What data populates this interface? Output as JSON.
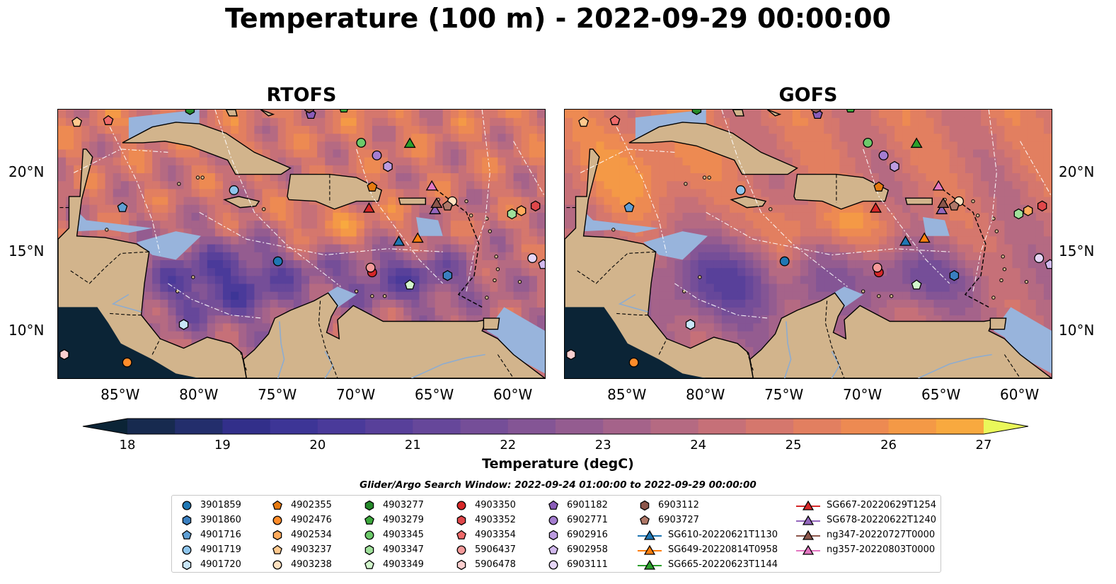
{
  "title": "Temperature (100 m) - 2022-09-29 00:00:00",
  "panels": [
    {
      "title": "RTOFS",
      "model": "rtofs"
    },
    {
      "title": "GOFS",
      "model": "gofs"
    }
  ],
  "map_extent": {
    "lon_min": -89,
    "lon_max": -58,
    "lat_min": 7,
    "lat_max": 24
  },
  "lon_ticks": [
    {
      "value": -85,
      "label": "85°W"
    },
    {
      "value": -80,
      "label": "80°W"
    },
    {
      "value": -75,
      "label": "75°W"
    },
    {
      "value": -70,
      "label": "70°W"
    },
    {
      "value": -65,
      "label": "65°W"
    },
    {
      "value": -60,
      "label": "60°W"
    }
  ],
  "lat_ticks": [
    {
      "value": 20,
      "label": "20°N"
    },
    {
      "value": 15,
      "label": "15°N"
    },
    {
      "value": 10,
      "label": "10°N"
    }
  ],
  "colorbar": {
    "label": "Temperature (degC)",
    "min": 18,
    "max": 27,
    "step": 0.5,
    "ticks": [
      "18",
      "19",
      "20",
      "21",
      "22",
      "23",
      "24",
      "25",
      "26",
      "27"
    ],
    "extend": "both",
    "colors": [
      "#0b2436",
      "#172a4f",
      "#232e6c",
      "#322f8a",
      "#3d3596",
      "#4a3a9a",
      "#58409a",
      "#66479a",
      "#754e98",
      "#845595",
      "#945c90",
      "#a5638a",
      "#b56a82",
      "#c67078",
      "#d5776d",
      "#e27f60",
      "#ed8a52",
      "#f49946",
      "#f8a93f",
      "#f9bc3e",
      "#f6d044",
      "#f2e64f",
      "#eaf85a"
    ],
    "land_color": "#d2b48c",
    "shelf_color": "#98b4dc"
  },
  "search_window": "Glider/Argo Search Window: 2022-09-24 01:00:00 to 2022-09-29 00:00:00",
  "legend": [
    {
      "label": "3901859",
      "marker": "circle",
      "color": "#1f77b4"
    },
    {
      "label": "3901860",
      "marker": "hexagon",
      "color": "#3a7fc0"
    },
    {
      "label": "4901716",
      "marker": "pentagon",
      "color": "#5f9fd4"
    },
    {
      "label": "4901719",
      "marker": "circle",
      "color": "#8ec5ec"
    },
    {
      "label": "4901720",
      "marker": "hexagon",
      "color": "#c9e6f8"
    },
    {
      "label": "4902355",
      "marker": "pentagon",
      "color": "#e67a10"
    },
    {
      "label": "4902476",
      "marker": "circle",
      "color": "#ff8c2a"
    },
    {
      "label": "4902534",
      "marker": "hexagon",
      "color": "#ffab5c"
    },
    {
      "label": "4903237",
      "marker": "pentagon",
      "color": "#ffc98e"
    },
    {
      "label": "4903238",
      "marker": "circle",
      "color": "#ffe1c0"
    },
    {
      "label": "4903277",
      "marker": "hexagon",
      "color": "#258a2a"
    },
    {
      "label": "4903279",
      "marker": "pentagon",
      "color": "#3ca83c"
    },
    {
      "label": "4903345",
      "marker": "circle",
      "color": "#6cc96a"
    },
    {
      "label": "4903347",
      "marker": "hexagon",
      "color": "#9fe09a"
    },
    {
      "label": "4903349",
      "marker": "pentagon",
      "color": "#d2f5cc"
    },
    {
      "label": "4903350",
      "marker": "circle",
      "color": "#d62728"
    },
    {
      "label": "4903352",
      "marker": "hexagon",
      "color": "#e0474a"
    },
    {
      "label": "4903354",
      "marker": "pentagon",
      "color": "#ee6a6a"
    },
    {
      "label": "5906437",
      "marker": "circle",
      "color": "#f59a9a"
    },
    {
      "label": "5906478",
      "marker": "hexagon",
      "color": "#fccfcf"
    },
    {
      "label": "6901182",
      "marker": "pentagon",
      "color": "#8a5cb8"
    },
    {
      "label": "6902771",
      "marker": "circle",
      "color": "#a47dd0"
    },
    {
      "label": "6902916",
      "marker": "hexagon",
      "color": "#bc9be0"
    },
    {
      "label": "6902958",
      "marker": "pentagon",
      "color": "#d2b9ee"
    },
    {
      "label": "6903111",
      "marker": "circle",
      "color": "#e6d6f8"
    },
    {
      "label": "6903112",
      "marker": "hexagon",
      "color": "#8c564b"
    },
    {
      "label": "6903727",
      "marker": "pentagon",
      "color": "#b07868"
    },
    {
      "label": "SG610-20220621T1130",
      "marker": "triangle",
      "color": "#1f77b4",
      "line": true
    },
    {
      "label": "SG649-20220814T0958",
      "marker": "triangle",
      "color": "#ff7f0e",
      "line": true
    },
    {
      "label": "SG665-20220623T1144",
      "marker": "triangle",
      "color": "#2ca02c",
      "line": true
    },
    {
      "label": "SG667-20220629T1254",
      "marker": "triangle",
      "color": "#d62728",
      "line": true
    },
    {
      "label": "SG678-20220622T1240",
      "marker": "triangle",
      "color": "#9467bd",
      "line": true
    },
    {
      "label": "ng347-20220727T0000",
      "marker": "triangle",
      "color": "#8c564b",
      "line": true
    },
    {
      "label": "ng357-20220803T0000",
      "marker": "triangle",
      "color": "#e377c2",
      "line": true
    }
  ],
  "platforms": [
    {
      "id": "3901859",
      "lon": -75.0,
      "lat": 14.4
    },
    {
      "id": "3901860",
      "lon": -64.2,
      "lat": 13.5
    },
    {
      "id": "4901716",
      "lon": -84.9,
      "lat": 17.8
    },
    {
      "id": "4901719",
      "lon": -77.8,
      "lat": 18.9
    },
    {
      "id": "4901720",
      "lon": -81.0,
      "lat": 10.4
    },
    {
      "id": "4902355",
      "lon": -69.0,
      "lat": 19.1
    },
    {
      "id": "4902476",
      "lon": -84.6,
      "lat": 8.0
    },
    {
      "id": "4902534",
      "lon": -59.5,
      "lat": 17.6
    },
    {
      "id": "4903237",
      "lon": -87.8,
      "lat": 23.2
    },
    {
      "id": "4903238",
      "lon": -63.9,
      "lat": 18.2
    },
    {
      "id": "4903277",
      "lon": -80.6,
      "lat": 24.0
    },
    {
      "id": "4903279",
      "lon": -70.8,
      "lat": 24.1
    },
    {
      "id": "4903345",
      "lon": -69.7,
      "lat": 21.9
    },
    {
      "id": "4903347",
      "lon": -60.1,
      "lat": 17.4
    },
    {
      "id": "4903349",
      "lon": -66.6,
      "lat": 12.9
    },
    {
      "id": "4903350",
      "lon": -69.0,
      "lat": 13.7
    },
    {
      "id": "4903352",
      "lon": -58.6,
      "lat": 17.9
    },
    {
      "id": "4903354",
      "lon": -85.8,
      "lat": 23.3
    },
    {
      "id": "5906437",
      "lon": -69.1,
      "lat": 14.0
    },
    {
      "id": "5906478",
      "lon": -88.6,
      "lat": 8.5
    },
    {
      "id": "6901182",
      "lon": -72.9,
      "lat": 23.7
    },
    {
      "id": "6902771",
      "lon": -68.7,
      "lat": 21.1
    },
    {
      "id": "6902916",
      "lon": -68.0,
      "lat": 20.4
    },
    {
      "id": "6902958",
      "lon": -58.1,
      "lat": 14.2
    },
    {
      "id": "6903111",
      "lon": -58.8,
      "lat": 14.6
    },
    {
      "id": "6903112",
      "lon": -73.0,
      "lat": 24.1
    },
    {
      "id": "6903727",
      "lon": -64.2,
      "lat": 17.9
    },
    {
      "id": "SG610-20220621T1130",
      "lon": -67.3,
      "lat": 15.6
    },
    {
      "id": "SG649-20220814T0958",
      "lon": -66.1,
      "lat": 15.8
    },
    {
      "id": "SG665-20220623T1144",
      "lon": -66.6,
      "lat": 21.8
    },
    {
      "id": "SG667-20220629T1254",
      "lon": -69.2,
      "lat": 17.7
    },
    {
      "id": "SG678-20220622T1240",
      "lon": -65.0,
      "lat": 17.6
    },
    {
      "id": "ng347-20220727T0000",
      "lon": -64.9,
      "lat": 18.0
    },
    {
      "id": "ng357-20220803T0000",
      "lon": -65.2,
      "lat": 19.1
    }
  ]
}
